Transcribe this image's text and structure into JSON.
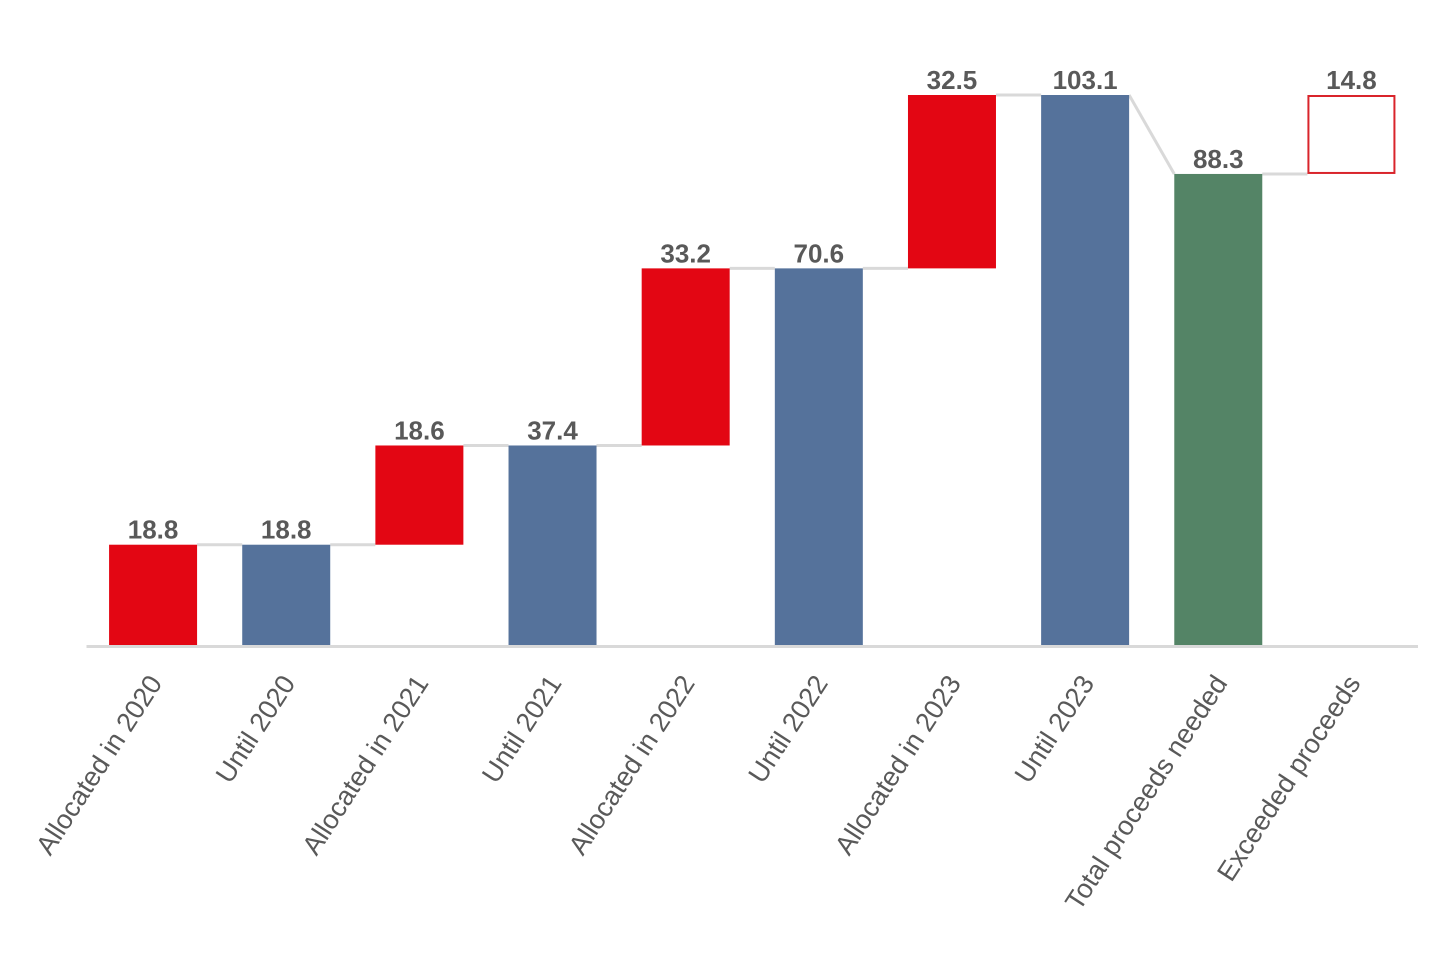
{
  "chart_data": {
    "type": "waterfall",
    "categories": [
      "Allocated in 2020",
      "Until 2020",
      "Allocated in 2021",
      "Until 2021",
      "Allocated in 2022",
      "Until 2022",
      "Allocated in 2023",
      "Until 2023",
      "Total proceeds needed",
      "Exceeded proceeds"
    ],
    "values": [
      18.8,
      18.8,
      18.6,
      37.4,
      33.2,
      70.6,
      32.5,
      103.1,
      88.3,
      14.8
    ],
    "kinds": [
      "delta",
      "total",
      "delta",
      "total",
      "delta",
      "total",
      "delta",
      "total",
      "total",
      "delta"
    ],
    "colors": [
      "#e30613",
      "#55729b",
      "#e30613",
      "#55729b",
      "#e30613",
      "#55729b",
      "#e30613",
      "#55729b",
      "#548466",
      "#d9242b"
    ],
    "bar_styles": [
      "solid",
      "solid",
      "solid",
      "solid",
      "solid",
      "solid",
      "solid",
      "solid",
      "solid",
      "outline"
    ],
    "connectors": true
  }
}
